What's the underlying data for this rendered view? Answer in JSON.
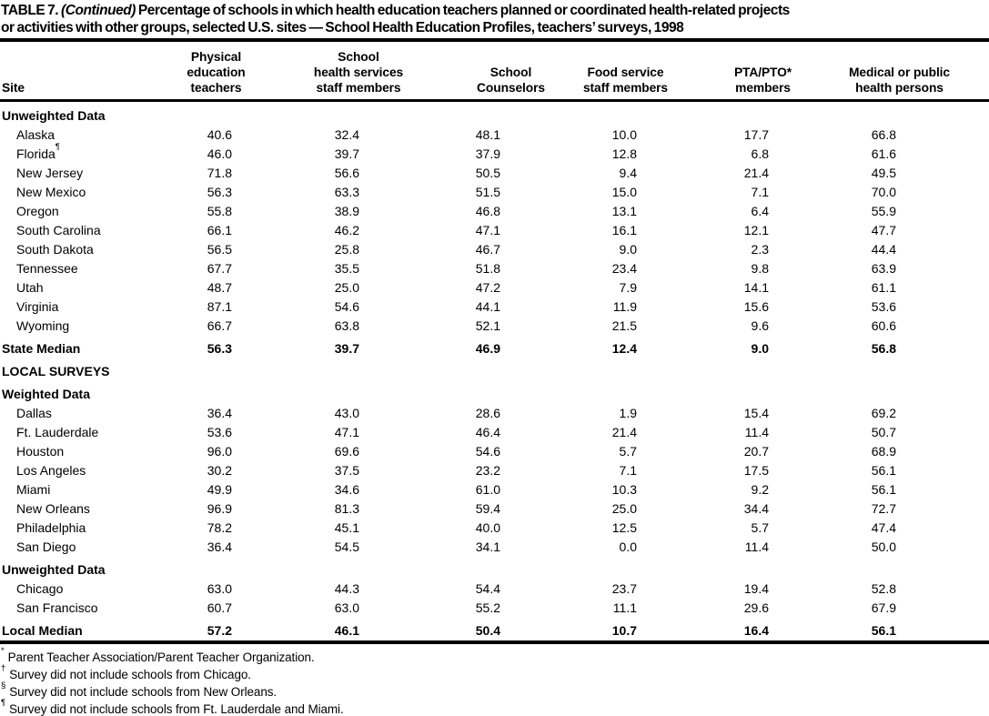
{
  "title": {
    "line1_prefix": "TABLE 7.",
    "line1_continued": "(Continued)",
    "line1_rest": "Percentage of schools in which health education teachers planned or coordinated health-related projects",
    "line2": "or activities with other groups, selected U.S. sites — School Health Education Profiles, teachers’ surveys, 1998"
  },
  "table": {
    "columns": [
      {
        "id": "site",
        "lines": [
          "Site"
        ]
      },
      {
        "id": "physical-education-teachers",
        "lines": [
          "Physical",
          "education",
          "teachers"
        ]
      },
      {
        "id": "school-health-services-staff-members",
        "lines": [
          "School",
          "health services",
          "staff members"
        ]
      },
      {
        "id": "school-counselors",
        "lines": [
          "School",
          "Counselors"
        ]
      },
      {
        "id": "food-service-staff-members",
        "lines": [
          "Food service",
          "staff members"
        ]
      },
      {
        "id": "pta-pto-members",
        "lines": [
          "PTA/PTO*",
          "members"
        ]
      },
      {
        "id": "medical-or-public-health-persons",
        "lines": [
          "Medical or public",
          "health persons"
        ]
      }
    ],
    "rows": [
      {
        "kind": "section",
        "label": "Unweighted Data"
      },
      {
        "kind": "data",
        "site": "Alaska",
        "values": [
          "40.6",
          "32.4",
          "48.1",
          "10.0",
          "17.7",
          "66.8"
        ]
      },
      {
        "kind": "data",
        "site": "Florida",
        "sup": "¶",
        "values": [
          "46.0",
          "39.7",
          "37.9",
          "12.8",
          "6.8",
          "61.6"
        ]
      },
      {
        "kind": "data",
        "site": "New Jersey",
        "values": [
          "71.8",
          "56.6",
          "50.5",
          "9.4",
          "21.4",
          "49.5"
        ]
      },
      {
        "kind": "data",
        "site": "New Mexico",
        "values": [
          "56.3",
          "63.3",
          "51.5",
          "15.0",
          "7.1",
          "70.0"
        ]
      },
      {
        "kind": "data",
        "site": "Oregon",
        "values": [
          "55.8",
          "38.9",
          "46.8",
          "13.1",
          "6.4",
          "55.9"
        ]
      },
      {
        "kind": "data",
        "site": "South Carolina",
        "values": [
          "66.1",
          "46.2",
          "47.1",
          "16.1",
          "12.1",
          "47.7"
        ]
      },
      {
        "kind": "data",
        "site": "South Dakota",
        "values": [
          "56.5",
          "25.8",
          "46.7",
          "9.0",
          "2.3",
          "44.4"
        ]
      },
      {
        "kind": "data",
        "site": "Tennessee",
        "values": [
          "67.7",
          "35.5",
          "51.8",
          "23.4",
          "9.8",
          "63.9"
        ]
      },
      {
        "kind": "data",
        "site": "Utah",
        "values": [
          "48.7",
          "25.0",
          "47.2",
          "7.9",
          "14.1",
          "61.1"
        ]
      },
      {
        "kind": "data",
        "site": "Virginia",
        "values": [
          "87.1",
          "54.6",
          "44.1",
          "11.9",
          "15.6",
          "53.6"
        ]
      },
      {
        "kind": "data",
        "site": "Wyoming",
        "values": [
          "66.7",
          "63.8",
          "52.1",
          "21.5",
          "9.6",
          "60.6"
        ]
      },
      {
        "kind": "median",
        "site": "State Median",
        "values": [
          "56.3",
          "39.7",
          "46.9",
          "12.4",
          "9.0",
          "56.8"
        ]
      },
      {
        "kind": "caps",
        "label": "LOCAL SURVEYS"
      },
      {
        "kind": "section",
        "label": "Weighted Data"
      },
      {
        "kind": "data",
        "site": "Dallas",
        "values": [
          "36.4",
          "43.0",
          "28.6",
          "1.9",
          "15.4",
          "69.2"
        ]
      },
      {
        "kind": "data",
        "site": "Ft. Lauderdale",
        "values": [
          "53.6",
          "47.1",
          "46.4",
          "21.4",
          "11.4",
          "50.7"
        ]
      },
      {
        "kind": "data",
        "site": "Houston",
        "values": [
          "96.0",
          "69.6",
          "54.6",
          "5.7",
          "20.7",
          "68.9"
        ]
      },
      {
        "kind": "data",
        "site": "Los Angeles",
        "values": [
          "30.2",
          "37.5",
          "23.2",
          "7.1",
          "17.5",
          "56.1"
        ]
      },
      {
        "kind": "data",
        "site": "Miami",
        "values": [
          "49.9",
          "34.6",
          "61.0",
          "10.3",
          "9.2",
          "56.1"
        ]
      },
      {
        "kind": "data",
        "site": "New Orleans",
        "values": [
          "96.9",
          "81.3",
          "59.4",
          "25.0",
          "34.4",
          "72.7"
        ]
      },
      {
        "kind": "data",
        "site": "Philadelphia",
        "values": [
          "78.2",
          "45.1",
          "40.0",
          "12.5",
          "5.7",
          "47.4"
        ]
      },
      {
        "kind": "data",
        "site": "San Diego",
        "values": [
          "36.4",
          "54.5",
          "34.1",
          "0.0",
          "11.4",
          "50.0"
        ]
      },
      {
        "kind": "section",
        "label": "Unweighted Data"
      },
      {
        "kind": "data",
        "site": "Chicago",
        "values": [
          "63.0",
          "44.3",
          "54.4",
          "23.7",
          "19.4",
          "52.8"
        ]
      },
      {
        "kind": "data",
        "site": "San Francisco",
        "values": [
          "60.7",
          "63.0",
          "55.2",
          "11.1",
          "29.6",
          "67.9"
        ]
      },
      {
        "kind": "median",
        "site": "Local Median",
        "values": [
          "57.2",
          "46.1",
          "50.4",
          "10.7",
          "16.4",
          "56.1"
        ]
      }
    ]
  },
  "footnotes": [
    {
      "symbol": "*",
      "text": "Parent Teacher Association/Parent Teacher Organization."
    },
    {
      "symbol": "†",
      "text": "Survey did not include schools from Chicago."
    },
    {
      "symbol": "§",
      "text": "Survey did not include schools from New Orleans."
    },
    {
      "symbol": "¶",
      "text": "Survey did not include schools from Ft. Lauderdale and Miami."
    }
  ]
}
